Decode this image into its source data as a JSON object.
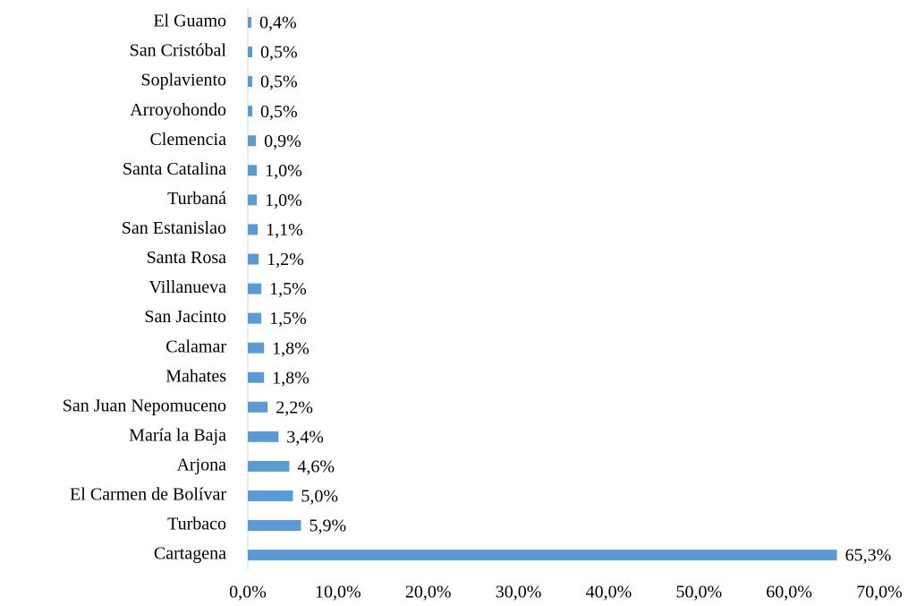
{
  "chart_data": {
    "type": "bar",
    "orientation": "horizontal",
    "categories": [
      "El Guamo",
      "San Cristóbal",
      "Soplaviento",
      "Arroyohondo",
      "Clemencia",
      "Santa Catalina",
      "Turbaná",
      "San Estanislao",
      "Santa Rosa",
      "Villanueva",
      "San Jacinto",
      "Calamar",
      "Mahates",
      "San Juan Nepomuceno",
      "María la Baja",
      "Arjona",
      "El Carmen de Bolívar",
      "Turbaco",
      "Cartagena"
    ],
    "values": [
      0.4,
      0.5,
      0.5,
      0.5,
      0.9,
      1.0,
      1.0,
      1.1,
      1.2,
      1.5,
      1.5,
      1.8,
      1.8,
      2.2,
      3.4,
      4.6,
      5.0,
      5.9,
      65.3
    ],
    "value_labels": [
      "0,4%",
      "0,5%",
      "0,5%",
      "0,5%",
      "0,9%",
      "1,0%",
      "1,0%",
      "1,1%",
      "1,2%",
      "1,5%",
      "1,5%",
      "1,8%",
      "1,8%",
      "2,2%",
      "3,4%",
      "4,6%",
      "5,0%",
      "5,9%",
      "65,3%"
    ],
    "color": "#5b9bd5",
    "xlim": [
      0,
      70
    ],
    "xticks": [
      {
        "value": 0,
        "label": "0,0%"
      },
      {
        "value": 10,
        "label": "10,0%"
      },
      {
        "value": 20,
        "label": "20,0%"
      },
      {
        "value": 30,
        "label": "30,0%"
      },
      {
        "value": 40,
        "label": "40,0%"
      },
      {
        "value": 50,
        "label": "50,0%"
      },
      {
        "value": 60,
        "label": "60,0%"
      },
      {
        "value": 70,
        "label": "70,0%"
      }
    ],
    "grid": false
  }
}
